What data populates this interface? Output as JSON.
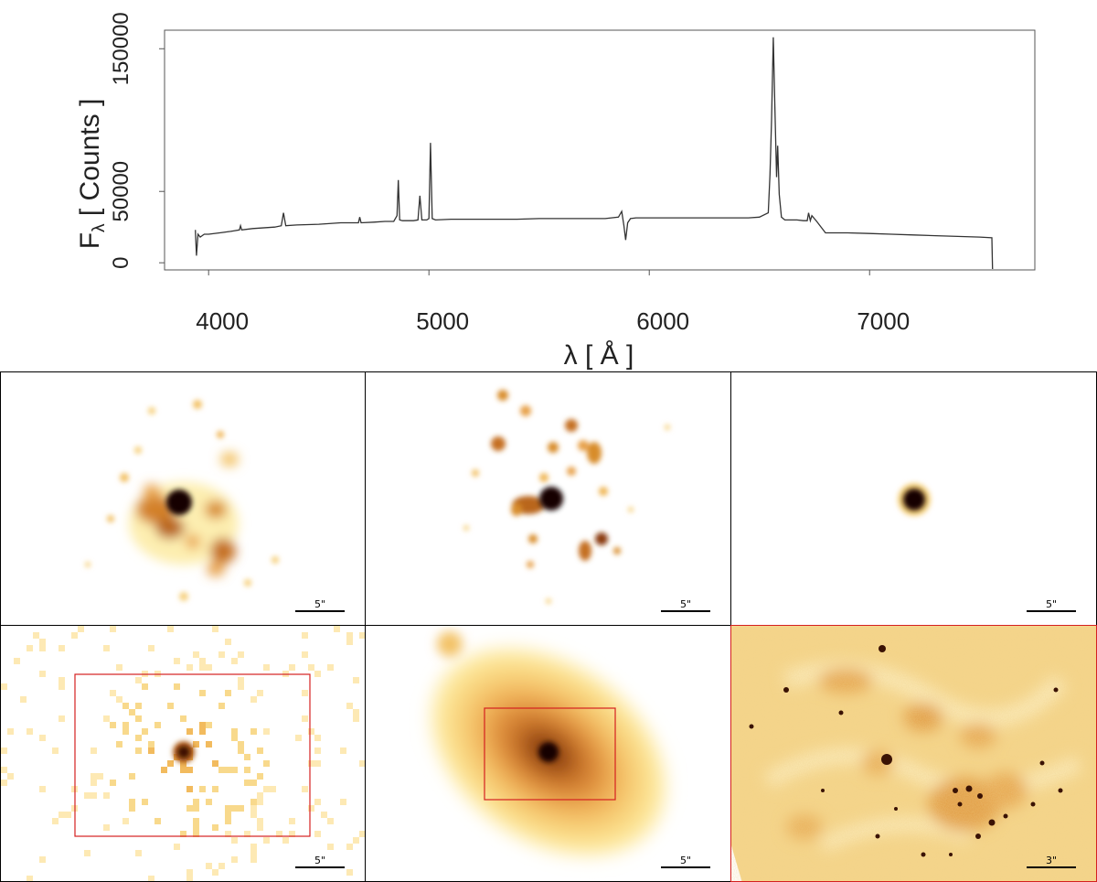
{
  "chart_data": {
    "type": "line",
    "ylabel_main": "F",
    "ylabel_sub": "λ",
    "ylabel_rest": " [ Counts ]",
    "xlabel": "λ [ Å ]",
    "xlim": [
      3800,
      7750
    ],
    "ylim": [
      -5000,
      163000
    ],
    "xticks": [
      {
        "value": 4000,
        "label": "4000"
      },
      {
        "value": 5000,
        "label": "5000"
      },
      {
        "value": 6000,
        "label": "6000"
      },
      {
        "value": 7000,
        "label": "7000"
      }
    ],
    "yticks": [
      {
        "value": 0,
        "label": "0"
      },
      {
        "value": 50000,
        "label": "50000"
      },
      {
        "value": 150000,
        "label": "150000"
      }
    ],
    "series": [
      {
        "color": "#333333",
        "x": [
          3940,
          3945,
          3952,
          3962,
          3980,
          4000,
          4050,
          4100,
          4140,
          4145,
          4150,
          4200,
          4300,
          4330,
          4340,
          4350,
          4400,
          4500,
          4600,
          4680,
          4686,
          4692,
          4750,
          4800,
          4840,
          4855,
          4861,
          4867,
          4880,
          4930,
          4950,
          4959,
          4968,
          4990,
          5000,
          5007,
          5015,
          5030,
          5100,
          5200,
          5300,
          5400,
          5500,
          5600,
          5700,
          5800,
          5860,
          5875,
          5885,
          5893,
          5902,
          5915,
          5940,
          6000,
          6100,
          6200,
          6300,
          6400,
          6450,
          6500,
          6540,
          6548,
          6555,
          6563,
          6570,
          6578,
          6583,
          6590,
          6600,
          6615,
          6650,
          6670,
          6700,
          6717,
          6723,
          6731,
          6738,
          6760,
          6800,
          6900,
          7000,
          7100,
          7200,
          7300,
          7400,
          7500,
          7555,
          7558,
          7561
        ],
        "y": [
          23000,
          5000,
          20000,
          18000,
          20000,
          20000,
          21000,
          22000,
          23000,
          26000,
          23000,
          24000,
          25000,
          26000,
          35000,
          26000,
          26500,
          27000,
          28000,
          28000,
          32000,
          28000,
          28500,
          29000,
          29000,
          33000,
          58000,
          30000,
          29500,
          29500,
          30000,
          47000,
          30000,
          30000,
          31000,
          84000,
          31000,
          30000,
          30500,
          30500,
          30500,
          30500,
          31000,
          31000,
          31000,
          31000,
          32000,
          36000,
          26000,
          16000,
          28000,
          31000,
          31500,
          31500,
          31500,
          31500,
          31500,
          31500,
          31500,
          32000,
          35000,
          62000,
          100000,
          158000,
          110000,
          60000,
          82000,
          48000,
          32000,
          30000,
          30000,
          30000,
          29500,
          29500,
          35000,
          29500,
          33000,
          29000,
          21000,
          21000,
          20500,
          20000,
          19500,
          19000,
          18500,
          18000,
          17500,
          -4000,
          -4000
        ]
      }
    ]
  },
  "scalebars": {
    "p1": "5\"",
    "p2": "5\"",
    "p3": "5\"",
    "p4": "5\"",
    "p5": "5\"",
    "p6": "3\""
  },
  "colors": {
    "line": "#333333",
    "box": "#d42020",
    "map_pale": "#fff2b8",
    "map_mid": "#e99a32",
    "map_dark": "#140400"
  }
}
